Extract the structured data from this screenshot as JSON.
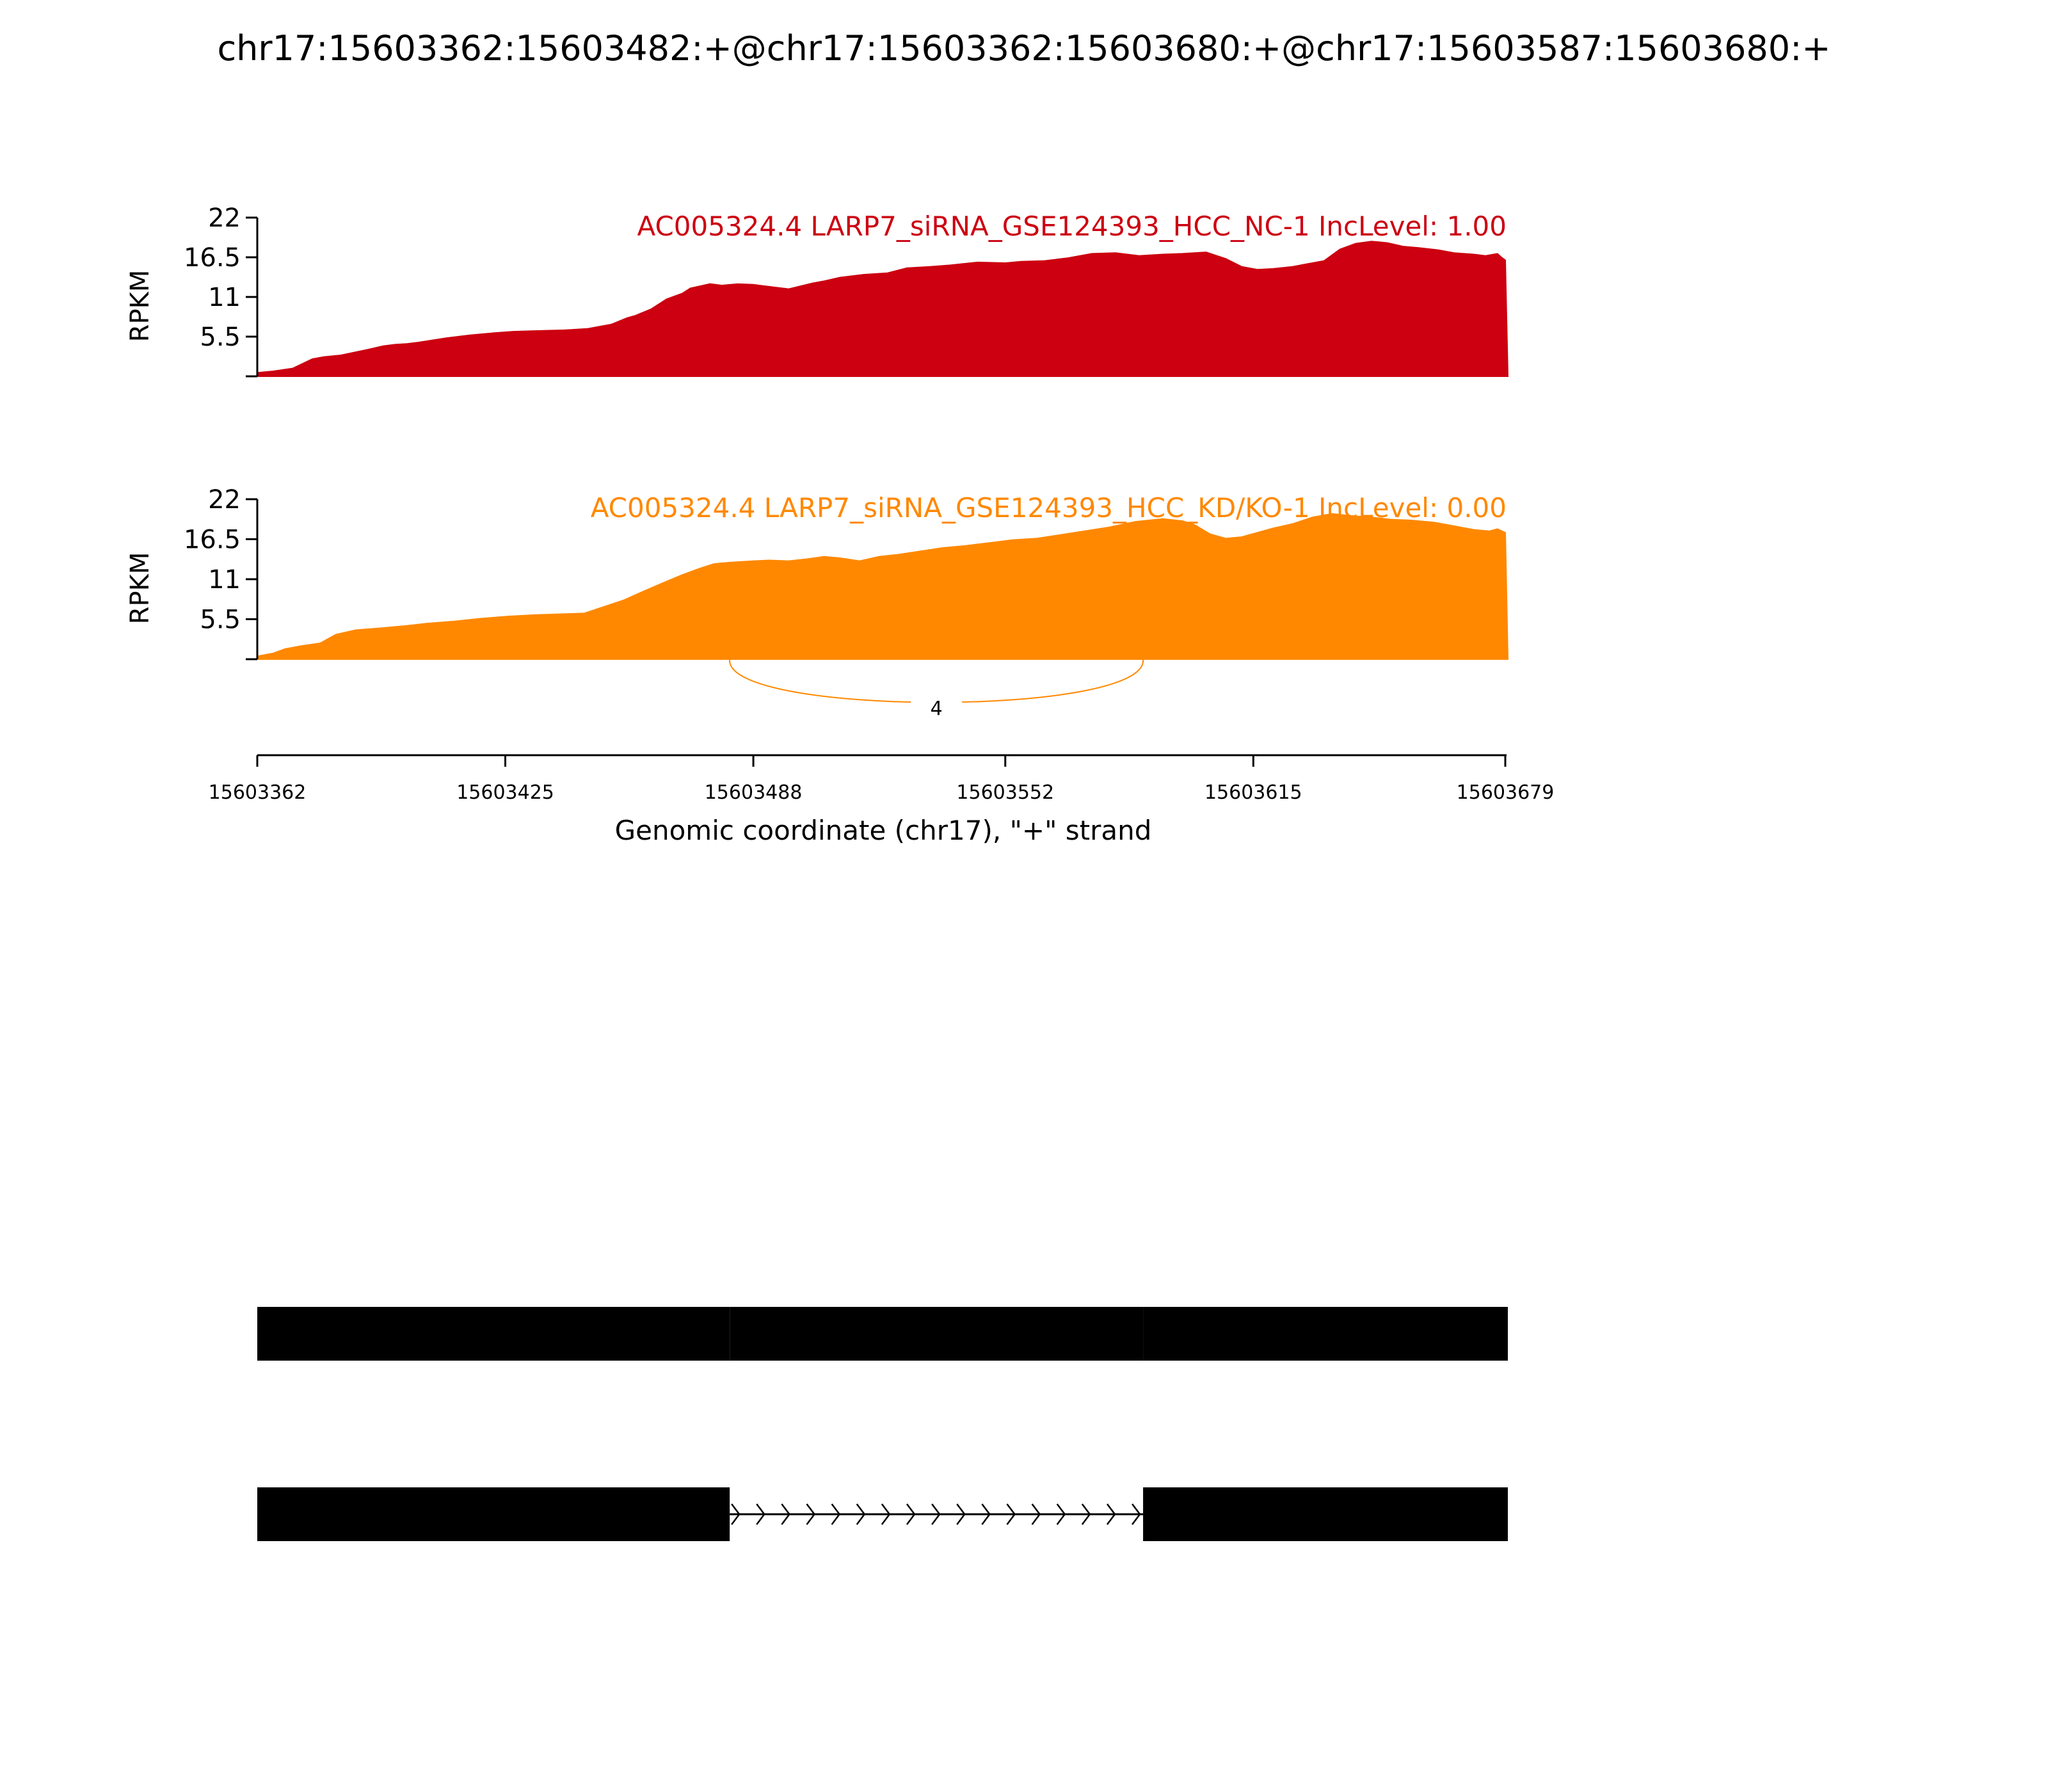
{
  "chart_data": {
    "type": "area",
    "title": "chr17:15603362:15603482:+@chr17:15603362:15603680:+@chr17:15603587:15603680:+",
    "xlabel": "Genomic coordinate (chr17), \"+\" strand",
    "xlim": [
      15603362,
      15603679
    ],
    "x_ticks": [
      "15603362",
      "15603425",
      "15603488",
      "15603552",
      "15603615",
      "15603679"
    ],
    "x_tick_values": [
      15603362,
      15603425,
      15603488,
      15603552,
      15603615,
      15603679
    ],
    "panels": [
      {
        "label": "AC005324.4 LARP7_siRNA_GSE124393_HCC_NC-1 IncLevel: 1.00",
        "color": "#cc0011",
        "ylabel": "RPKM",
        "ylim": [
          0,
          22
        ],
        "y_ticks": [
          "5.5",
          "11",
          "16.5",
          "22"
        ],
        "y_tick_values": [
          5.5,
          11,
          16.5,
          22
        ],
        "x": [
          15603362,
          15603366,
          15603371,
          15603376,
          15603379,
          15603383,
          15603390,
          15603394,
          15603397,
          15603400,
          15603403,
          15603410,
          15603416,
          15603422,
          15603427,
          15603433,
          15603440,
          15603446,
          15603452,
          15603456,
          15603458,
          15603462,
          15603466,
          15603470,
          15603472,
          15603477,
          15603480,
          15603484,
          15603488,
          15603491,
          15603497,
          15603503,
          15603506,
          15603510,
          15603516,
          15603522,
          15603527,
          15603533,
          15603538,
          15603545,
          15603552,
          15603556,
          15603562,
          15603568,
          15603574,
          15603580,
          15603586,
          15603592,
          15603597,
          15603603,
          15603608,
          15603612,
          15603616,
          15603620,
          15603625,
          15603629,
          15603633,
          15603637,
          15603641,
          15603645,
          15603649,
          15603653,
          15603657,
          15603662,
          15603666,
          15603671,
          15603674,
          15603677,
          15603678,
          15603679
        ],
        "y": [
          0.5,
          0.7,
          1.1,
          2.4,
          2.7,
          2.9,
          3.7,
          4.2,
          4.4,
          4.5,
          4.7,
          5.3,
          5.7,
          6.0,
          6.2,
          6.3,
          6.4,
          6.6,
          7.2,
          8.1,
          8.4,
          9.3,
          10.7,
          11.5,
          12.2,
          12.8,
          12.6,
          12.8,
          12.7,
          12.5,
          12.1,
          12.9,
          13.2,
          13.7,
          14.1,
          14.3,
          15.0,
          15.2,
          15.4,
          15.8,
          15.7,
          15.9,
          16.0,
          16.4,
          17.0,
          17.1,
          16.7,
          16.9,
          17.0,
          17.2,
          16.3,
          15.2,
          14.8,
          14.9,
          15.2,
          15.6,
          16.0,
          17.6,
          18.4,
          18.7,
          18.5,
          18.0,
          17.8,
          17.5,
          17.1,
          16.9,
          16.7,
          17.0,
          16.5,
          16.1
        ]
      },
      {
        "label": "AC005324.4 LARP7_siRNA_GSE124393_HCC_KD/KO-1 IncLevel: 0.00",
        "color": "#ff8800",
        "ylabel": "RPKM",
        "ylim": [
          0,
          22
        ],
        "y_ticks": [
          "5.5",
          "11",
          "16.5",
          "22"
        ],
        "y_tick_values": [
          5.5,
          11,
          16.5,
          22
        ],
        "x": [
          15603362,
          15603366,
          15603369,
          15603373,
          15603378,
          15603382,
          15603387,
          15603394,
          15603400,
          15603405,
          15603412,
          15603419,
          15603426,
          15603433,
          15603445,
          15603450,
          15603455,
          15603460,
          15603466,
          15603470,
          15603474,
          15603478,
          15603482,
          15603485,
          15603488,
          15603492,
          15603497,
          15603502,
          15603506,
          15603510,
          15603515,
          15603520,
          15603525,
          15603530,
          15603536,
          15603542,
          15603548,
          15603554,
          15603560,
          15603566,
          15603572,
          15603578,
          15603585,
          15603592,
          15603597,
          15603600,
          15603604,
          15603608,
          15603612,
          15603616,
          15603620,
          15603625,
          15603630,
          15603635,
          15603640,
          15603645,
          15603650,
          15603655,
          15603661,
          15603666,
          15603671,
          15603675,
          15603677,
          15603679
        ],
        "y": [
          0.4,
          0.8,
          1.4,
          1.8,
          2.2,
          3.4,
          4.0,
          4.3,
          4.6,
          4.9,
          5.2,
          5.6,
          5.9,
          6.1,
          6.3,
          7.2,
          8.1,
          9.3,
          10.7,
          11.6,
          12.4,
          13.1,
          13.3,
          13.4,
          13.5,
          13.6,
          13.5,
          13.8,
          14.1,
          13.9,
          13.5,
          14.1,
          14.4,
          14.8,
          15.3,
          15.6,
          16.0,
          16.4,
          16.6,
          17.1,
          17.6,
          18.1,
          18.9,
          19.3,
          19.0,
          18.5,
          17.2,
          16.6,
          16.8,
          17.4,
          18.0,
          18.6,
          19.5,
          20.0,
          19.7,
          19.5,
          19.2,
          19.1,
          18.8,
          18.3,
          17.8,
          17.6,
          17.9,
          17.4
        ]
      }
    ],
    "junction": {
      "start": 15603482,
      "end": 15603587,
      "label": "4"
    }
  },
  "gene_models": {
    "isoform_inclusion": {
      "exons": [
        [
          15603362,
          15603482
        ],
        [
          15603482,
          15603587
        ],
        [
          15603587,
          15603680
        ]
      ]
    },
    "isoform_exclusion": {
      "exons": [
        [
          15603362,
          15603482
        ],
        [
          15603587,
          15603680
        ]
      ],
      "intron": [
        15603482,
        15603587
      ]
    }
  }
}
